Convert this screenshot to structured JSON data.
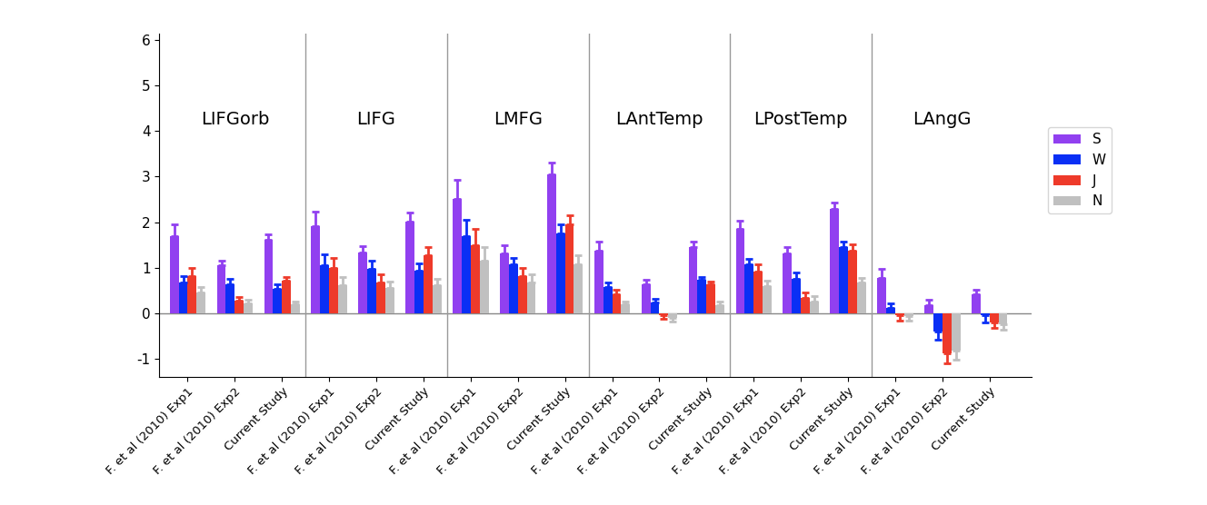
{
  "chart_data": {
    "type": "bar",
    "categories": [
      "F. et al (2010) Exp1",
      "F. et al (2010) Exp2",
      "Current Study",
      "F. et al (2010) Exp1",
      "F. et al (2010) Exp2",
      "Current Study",
      "F. et al (2010) Exp1",
      "F. et al (2010) Exp2",
      "Current Study",
      "F. et al (2010) Exp1",
      "F. et al (2010) Exp2",
      "Current Study",
      "F. et al (2010) Exp1",
      "F. et al (2010) Exp2",
      "Current Study",
      "F. et al (2010) Exp1",
      "F. et al (2010) Exp2",
      "Current Study"
    ],
    "groups": [
      "LIFGorb",
      "LIFG",
      "LMFG",
      "LAntTemp",
      "LPostTemp",
      "LAngG"
    ],
    "series": [
      {
        "name": "S",
        "color": "#9140f0",
        "values": [
          1.7,
          1.05,
          1.62,
          1.92,
          1.33,
          2.02,
          2.5,
          1.32,
          3.05,
          1.38,
          0.63,
          1.45,
          1.85,
          1.32,
          2.28,
          0.78,
          0.18,
          0.42
        ],
        "errors": [
          0.25,
          0.1,
          0.11,
          0.3,
          0.14,
          0.18,
          0.42,
          0.18,
          0.25,
          0.2,
          0.1,
          0.12,
          0.18,
          0.13,
          0.14,
          0.2,
          0.12,
          0.1
        ]
      },
      {
        "name": "W",
        "color": "#0a2ff5",
        "values": [
          0.68,
          0.63,
          0.53,
          1.05,
          0.97,
          0.93,
          1.7,
          1.07,
          1.75,
          0.57,
          0.23,
          0.73,
          1.08,
          0.75,
          1.45,
          0.12,
          -0.4,
          -0.05
        ],
        "errors": [
          0.14,
          0.12,
          0.1,
          0.25,
          0.18,
          0.17,
          0.35,
          0.15,
          0.2,
          0.11,
          0.09,
          0.07,
          0.12,
          0.15,
          0.13,
          0.1,
          0.18,
          0.15
        ]
      },
      {
        "name": "J",
        "color": "#ee3a2a",
        "values": [
          0.82,
          0.27,
          0.72,
          1.0,
          0.68,
          1.27,
          1.5,
          0.82,
          1.95,
          0.42,
          -0.05,
          0.63,
          0.92,
          0.33,
          1.38,
          -0.05,
          -0.88,
          -0.2
        ],
        "errors": [
          0.18,
          0.08,
          0.08,
          0.22,
          0.17,
          0.18,
          0.35,
          0.18,
          0.2,
          0.1,
          0.08,
          0.07,
          0.16,
          0.12,
          0.14,
          0.12,
          0.22,
          0.12
        ]
      },
      {
        "name": "N",
        "color": "#c0c0c0",
        "values": [
          0.45,
          0.22,
          0.2,
          0.62,
          0.55,
          0.62,
          1.15,
          0.68,
          1.08,
          0.2,
          -0.1,
          0.18,
          0.6,
          0.25,
          0.68,
          -0.07,
          -0.82,
          -0.25
        ],
        "errors": [
          0.12,
          0.08,
          0.05,
          0.18,
          0.15,
          0.13,
          0.3,
          0.17,
          0.2,
          0.05,
          0.08,
          0.07,
          0.12,
          0.13,
          0.1,
          0.1,
          0.2,
          0.12
        ]
      }
    ],
    "ylim": [
      -1.4,
      6.15
    ],
    "yticks": [
      -1,
      0,
      1,
      2,
      3,
      4,
      5,
      6
    ],
    "legend": "center left",
    "grid": false
  }
}
